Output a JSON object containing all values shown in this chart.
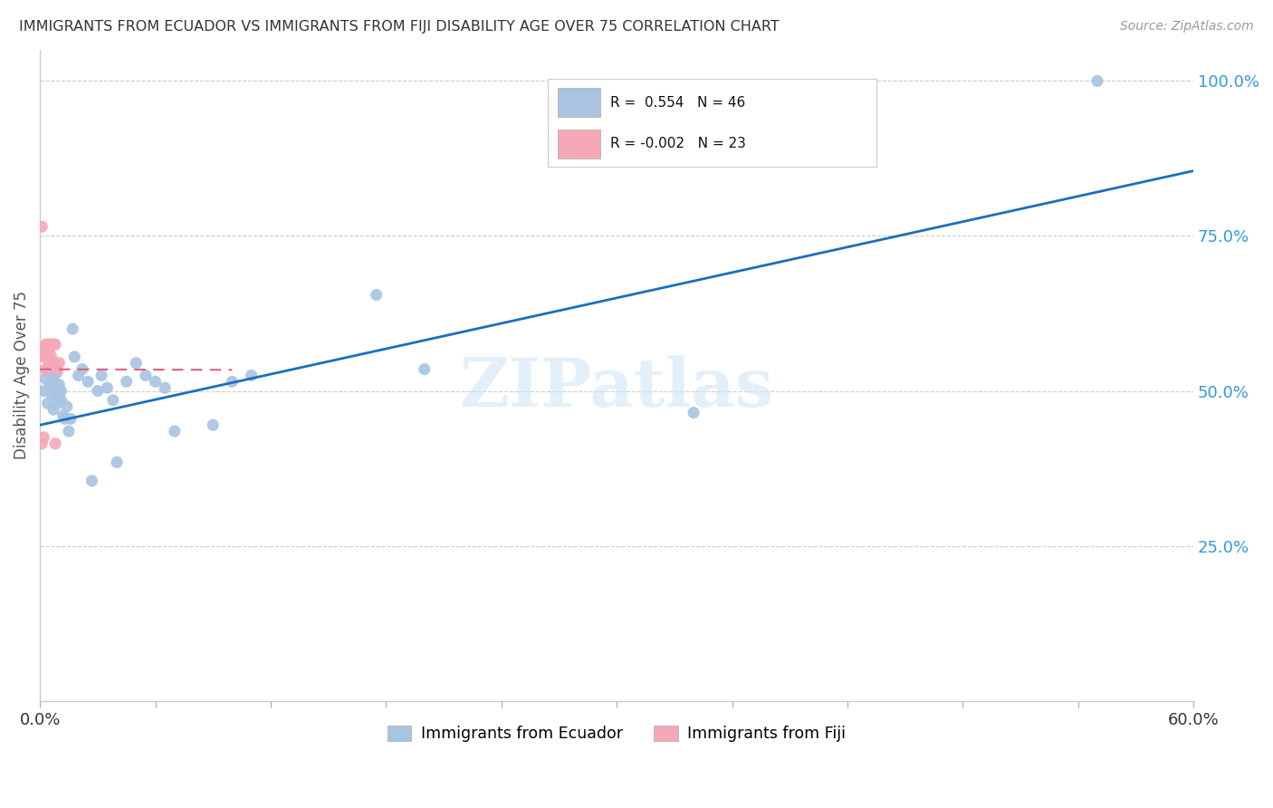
{
  "title": "IMMIGRANTS FROM ECUADOR VS IMMIGRANTS FROM FIJI DISABILITY AGE OVER 75 CORRELATION CHART",
  "source": "Source: ZipAtlas.com",
  "ylabel": "Disability Age Over 75",
  "xlim": [
    0.0,
    0.6
  ],
  "ylim": [
    0.0,
    1.05
  ],
  "xticks": [
    0.0,
    0.06,
    0.12,
    0.18,
    0.24,
    0.3,
    0.36,
    0.42,
    0.48,
    0.54,
    0.6
  ],
  "xticklabels": [
    "0.0%",
    "",
    "",
    "",
    "",
    "",
    "",
    "",
    "",
    "",
    "60.0%"
  ],
  "ytick_positions": [
    0.25,
    0.5,
    0.75,
    1.0
  ],
  "ytick_labels": [
    "25.0%",
    "50.0%",
    "75.0%",
    "100.0%"
  ],
  "ecuador_color": "#a8c4e0",
  "fiji_color": "#f4a8b8",
  "ecuador_line_color": "#1a6fbd",
  "fiji_line_color": "#e06080",
  "R_ecuador": 0.554,
  "N_ecuador": 46,
  "R_fiji": -0.002,
  "N_fiji": 23,
  "legend_label_ecuador": "Immigrants from Ecuador",
  "legend_label_fiji": "Immigrants from Fiji",
  "watermark": "ZIPatlas",
  "ecuador_x": [
    0.002,
    0.003,
    0.004,
    0.005,
    0.005,
    0.006,
    0.006,
    0.007,
    0.007,
    0.008,
    0.008,
    0.009,
    0.009,
    0.01,
    0.01,
    0.011,
    0.011,
    0.012,
    0.013,
    0.014,
    0.015,
    0.016,
    0.017,
    0.018,
    0.02,
    0.022,
    0.025,
    0.027,
    0.03,
    0.032,
    0.035,
    0.038,
    0.04,
    0.045,
    0.05,
    0.055,
    0.06,
    0.065,
    0.07,
    0.09,
    0.1,
    0.11,
    0.175,
    0.2,
    0.34,
    0.55
  ],
  "ecuador_y": [
    0.5,
    0.52,
    0.48,
    0.51,
    0.53,
    0.495,
    0.505,
    0.47,
    0.52,
    0.5,
    0.51,
    0.48,
    0.53,
    0.49,
    0.51,
    0.5,
    0.485,
    0.46,
    0.455,
    0.475,
    0.435,
    0.455,
    0.6,
    0.555,
    0.525,
    0.535,
    0.515,
    0.355,
    0.5,
    0.525,
    0.505,
    0.485,
    0.385,
    0.515,
    0.545,
    0.525,
    0.515,
    0.505,
    0.435,
    0.445,
    0.515,
    0.525,
    0.655,
    0.535,
    0.465,
    1.0
  ],
  "fiji_x": [
    0.001,
    0.001,
    0.002,
    0.002,
    0.002,
    0.003,
    0.003,
    0.003,
    0.003,
    0.004,
    0.004,
    0.004,
    0.005,
    0.005,
    0.005,
    0.006,
    0.006,
    0.007,
    0.007,
    0.008,
    0.008,
    0.009,
    0.01
  ],
  "fiji_y": [
    0.765,
    0.415,
    0.565,
    0.555,
    0.425,
    0.575,
    0.565,
    0.555,
    0.535,
    0.575,
    0.565,
    0.555,
    0.575,
    0.565,
    0.545,
    0.575,
    0.555,
    0.575,
    0.545,
    0.575,
    0.415,
    0.535,
    0.545
  ],
  "ecuador_line_x": [
    0.0,
    0.6
  ],
  "ecuador_line_y": [
    0.445,
    0.855
  ],
  "fiji_line_x": [
    0.0,
    0.1
  ],
  "fiji_line_y": [
    0.535,
    0.534
  ]
}
